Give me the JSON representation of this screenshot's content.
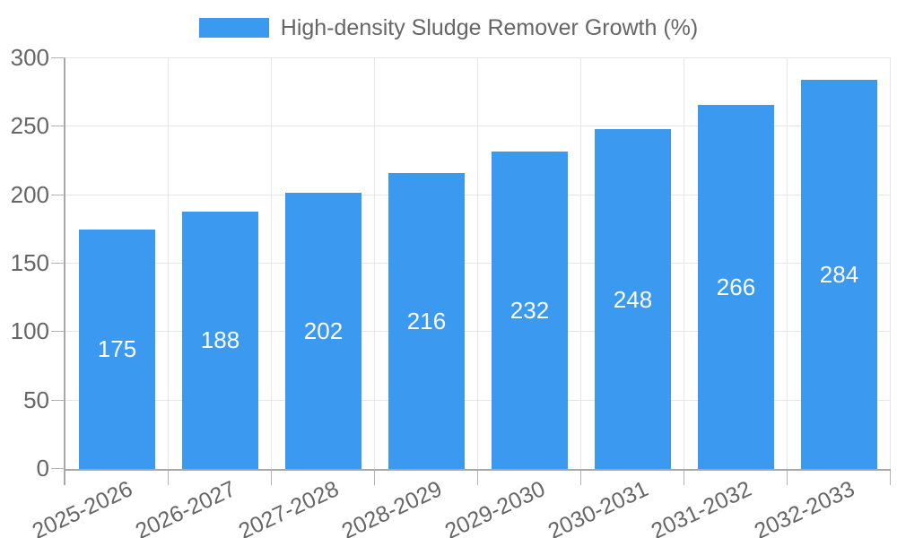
{
  "legend": {
    "label": "High-density Sludge Remover Growth (%)"
  },
  "chart_data": {
    "type": "bar",
    "title": "High-density Sludge Remover Growth (%)",
    "categories": [
      "2025-2026",
      "2026-2027",
      "2027-2028",
      "2028-2029",
      "2029-2030",
      "2030-2031",
      "2031-2032",
      "2032-2033"
    ],
    "values": [
      175,
      188,
      202,
      216,
      232,
      248,
      266,
      284
    ],
    "xlabel": "",
    "ylabel": "",
    "ylim": [
      0,
      300
    ],
    "yticks": [
      0,
      50,
      100,
      150,
      200,
      250,
      300
    ],
    "grid": true,
    "legend_position": "top",
    "x_label_rotation_deg": -25,
    "colors": {
      "bar": "#3B99F0",
      "bar_label": "#FFFFFF",
      "axis": "#A8A8A8",
      "tick": "#B3B3B3",
      "grid": "#E6E6E6",
      "text": "#666666",
      "background": "#FFFFFF"
    }
  }
}
